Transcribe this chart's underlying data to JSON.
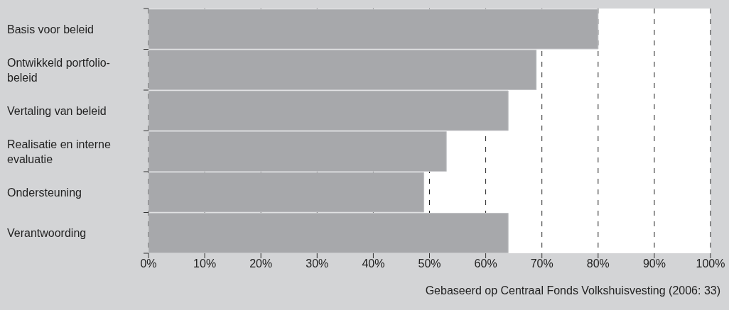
{
  "chart_data": {
    "type": "bar",
    "orientation": "horizontal",
    "categories": [
      "Basis voor beleid",
      "Ontwikkeld portfolio-beleid",
      "Vertaling van beleid",
      "Realisatie en interne evaluatie",
      "Ondersteuning",
      "Verantwoording"
    ],
    "values": [
      80,
      69,
      64,
      53,
      49,
      64
    ],
    "color": "#a7a8ab",
    "xlim": [
      0,
      100
    ],
    "xticks": [
      {
        "value": 0,
        "label": "0%"
      },
      {
        "value": 10,
        "label": "10%"
      },
      {
        "value": 20,
        "label": "20%"
      },
      {
        "value": 30,
        "label": "30%"
      },
      {
        "value": 40,
        "label": "40%"
      },
      {
        "value": 50,
        "label": "50%"
      },
      {
        "value": 60,
        "label": "60%"
      },
      {
        "value": 70,
        "label": "70%"
      },
      {
        "value": 80,
        "label": "80%"
      },
      {
        "value": 90,
        "label": "90%"
      },
      {
        "value": 100,
        "label": "100%"
      }
    ],
    "grid": "x",
    "annotations": [
      "Gebaseerd op Centraal Fonds Volkshuisvesting (2006: 33)"
    ]
  }
}
